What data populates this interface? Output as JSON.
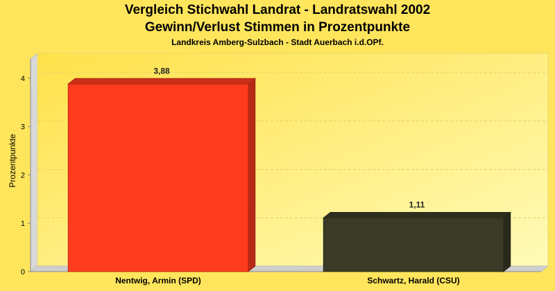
{
  "chart_data": {
    "type": "bar",
    "title": "Vergleich Stichwahl Landrat - Landratswahl 2002",
    "title_line2": "Gewinn/Verlust Stimmen in Prozentpunkte",
    "subtitle": "Landkreis Amberg-Sulzbach - Stadt Auerbach i.d.OPf.",
    "ylabel": "Prozentpunkte",
    "xlabel": "",
    "ylim": [
      0,
      4.4
    ],
    "yticks": [
      0,
      1,
      2,
      3,
      4
    ],
    "grid": true,
    "categories": [
      "Nentwig, Armin (SPD)",
      "Schwartz, Harald (CSU)"
    ],
    "values": [
      3.88,
      1.11
    ],
    "value_labels": [
      "3,88",
      "1,11"
    ],
    "colors": [
      "#ff3b1e",
      "#3a3a26"
    ]
  }
}
